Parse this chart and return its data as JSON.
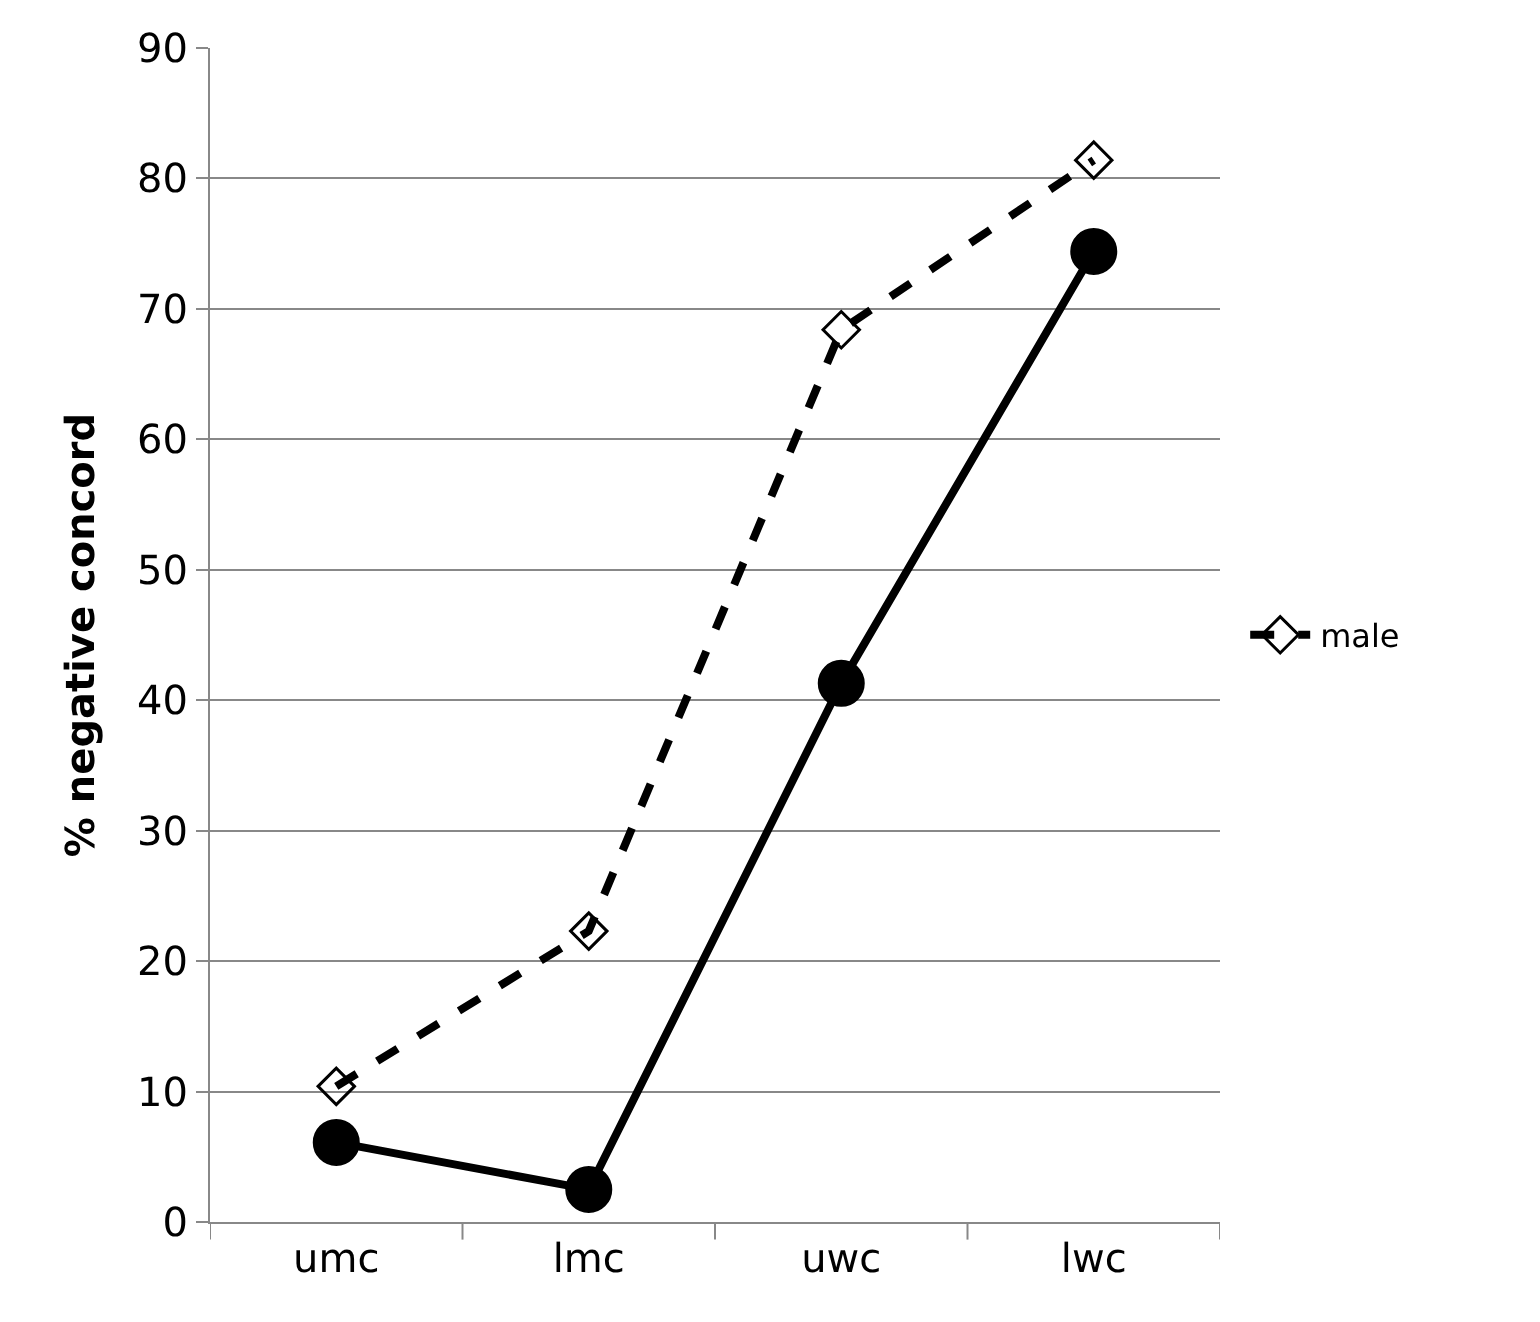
{
  "chart_data": {
    "type": "line",
    "ylabel": "% negative concord",
    "categories": [
      "umc",
      "lmc",
      "uwc",
      "lwc"
    ],
    "series": [
      {
        "name": "male",
        "color": "#000000",
        "values": [
          10.4,
          22.3,
          68.4,
          81.4
        ],
        "marker": "diamond",
        "line_style": "dashed"
      },
      {
        "color": "#000000",
        "values": [
          6.1,
          2.5,
          41.3,
          74.4
        ],
        "marker": "circle",
        "line_style": "solid"
      }
    ],
    "ylim": [
      0,
      90
    ],
    "yticks": [
      0,
      10,
      20,
      30,
      40,
      50,
      60,
      70,
      80,
      90
    ],
    "grid": "y",
    "legend": "right"
  }
}
